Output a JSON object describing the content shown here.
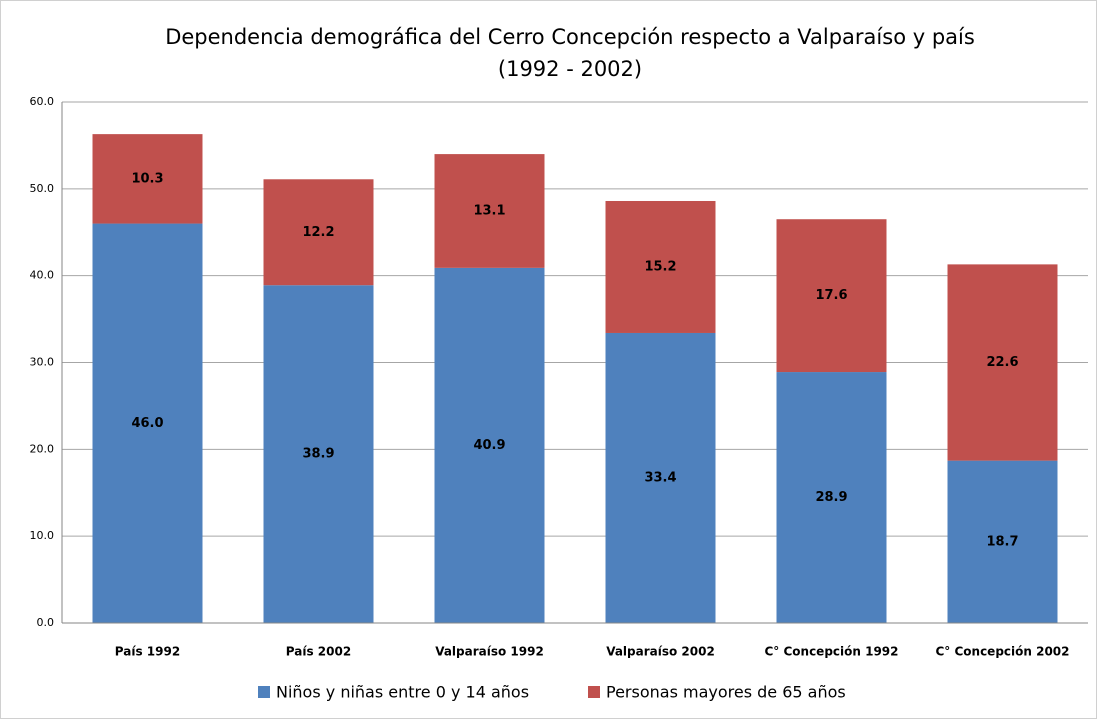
{
  "chart_data": {
    "type": "stacked_bar",
    "title": "Dependencia demográfica del Cerro Concepción respecto a Valparaíso y país",
    "subtitle": "(1992 - 2002)",
    "categories": [
      "País 1992",
      "País 2002",
      "Valparaíso 1992",
      "Valparaíso 2002",
      "C° Concepción 1992",
      "C° Concepción 2002"
    ],
    "series": [
      {
        "name": "Niños y niñas entre 0 y 14 años",
        "color": "#4f81bd",
        "values": [
          46.0,
          38.9,
          40.9,
          33.4,
          28.9,
          18.7
        ],
        "value_labels": [
          "46.0",
          "38.9",
          "40.9",
          "33.4",
          "28.9",
          "18.7"
        ]
      },
      {
        "name": "Personas mayores de 65 años",
        "color": "#c0504d",
        "values": [
          10.3,
          12.2,
          13.1,
          15.2,
          17.6,
          22.6
        ],
        "value_labels": [
          "10.3",
          "12.2",
          "13.1",
          "15.2",
          "17.6",
          "22.6"
        ]
      }
    ],
    "ylim": [
      0,
      60
    ],
    "yticks": [
      {
        "value": 0,
        "label": "0.0"
      },
      {
        "value": 10,
        "label": "10.0"
      },
      {
        "value": 20,
        "label": "20.0"
      },
      {
        "value": 30,
        "label": "30.0"
      },
      {
        "value": 40,
        "label": "40.0"
      },
      {
        "value": 50,
        "label": "50.0"
      },
      {
        "value": 60,
        "label": "60.0"
      }
    ],
    "grid": true,
    "legend": "bottom"
  }
}
